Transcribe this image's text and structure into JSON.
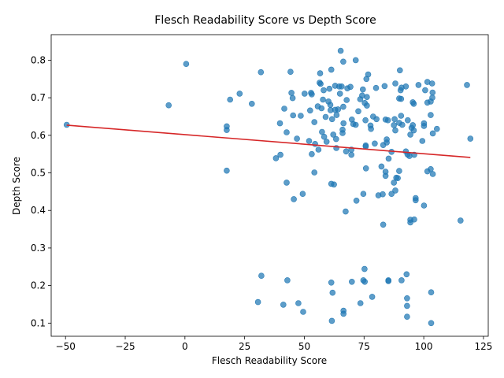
{
  "chart_data": {
    "type": "scatter",
    "title": "Flesch Readability Score vs Depth Score",
    "xlabel": "Flesch Readability Score",
    "ylabel": "Depth Score",
    "xlim": [
      -56,
      127
    ],
    "ylim": [
      0.065,
      0.868
    ],
    "xticks": [
      -50,
      -25,
      0,
      25,
      50,
      75,
      100,
      125
    ],
    "yticks": [
      0.1,
      0.2,
      0.3,
      0.4,
      0.5,
      0.6,
      0.7,
      0.8
    ],
    "grid": false,
    "point_color": "#1f77b4",
    "trend_color": "#d62728",
    "trendline": {
      "x": [
        -49.5,
        119.5
      ],
      "y": [
        0.627,
        0.541
      ]
    },
    "points": [
      [
        -49.5,
        0.628
      ],
      [
        -6.8,
        0.68
      ],
      [
        0.5,
        0.79
      ],
      [
        17.5,
        0.624
      ],
      [
        17.5,
        0.614
      ],
      [
        17.5,
        0.506
      ],
      [
        18.9,
        0.695
      ],
      [
        22.9,
        0.711
      ],
      [
        28.0,
        0.684
      ],
      [
        31.8,
        0.768
      ],
      [
        32.0,
        0.226
      ],
      [
        30.6,
        0.156
      ],
      [
        38.1,
        0.539
      ],
      [
        39.8,
        0.632
      ],
      [
        40.0,
        0.548
      ],
      [
        41.6,
        0.671
      ],
      [
        42.6,
        0.608
      ],
      [
        42.6,
        0.474
      ],
      [
        42.9,
        0.214
      ],
      [
        44.2,
        0.769
      ],
      [
        44.6,
        0.713
      ],
      [
        45.1,
        0.699
      ],
      [
        45.3,
        0.653
      ],
      [
        45.6,
        0.43
      ],
      [
        41.2,
        0.149
      ],
      [
        46.9,
        0.591
      ],
      [
        47.5,
        0.153
      ],
      [
        48.5,
        0.652
      ],
      [
        49.3,
        0.444
      ],
      [
        49.5,
        0.13
      ],
      [
        50.1,
        0.711
      ],
      [
        52.0,
        0.585
      ],
      [
        52.4,
        0.666
      ],
      [
        52.8,
        0.713
      ],
      [
        53.1,
        0.709
      ],
      [
        53.1,
        0.55
      ],
      [
        54.2,
        0.635
      ],
      [
        54.2,
        0.501
      ],
      [
        54.5,
        0.577
      ],
      [
        55.6,
        0.677
      ],
      [
        55.9,
        0.562
      ],
      [
        56.4,
        0.74
      ],
      [
        56.6,
        0.765
      ],
      [
        56.8,
        0.737
      ],
      [
        57.2,
        0.672
      ],
      [
        57.4,
        0.609
      ],
      [
        57.8,
        0.695
      ],
      [
        58.1,
        0.72
      ],
      [
        58.3,
        0.596
      ],
      [
        58.9,
        0.649
      ],
      [
        59.3,
        0.583
      ],
      [
        60.1,
        0.69
      ],
      [
        60.5,
        0.724
      ],
      [
        60.9,
        0.681
      ],
      [
        61.0,
        0.667
      ],
      [
        61.3,
        0.775
      ],
      [
        61.3,
        0.471
      ],
      [
        61.3,
        0.208
      ],
      [
        61.5,
        0.106
      ],
      [
        61.6,
        0.643
      ],
      [
        61.8,
        0.181
      ],
      [
        62.1,
        0.602
      ],
      [
        62.4,
        0.469
      ],
      [
        62.9,
        0.668
      ],
      [
        62.9,
        0.732
      ],
      [
        63.3,
        0.59
      ],
      [
        63.4,
        0.566
      ],
      [
        63.5,
        0.654
      ],
      [
        64.1,
        0.669
      ],
      [
        64.6,
        0.73
      ],
      [
        64.9,
        0.711
      ],
      [
        65.2,
        0.825
      ],
      [
        65.6,
        0.73
      ],
      [
        66.0,
        0.615
      ],
      [
        66.0,
        0.606
      ],
      [
        66.3,
        0.796
      ],
      [
        66.3,
        0.676
      ],
      [
        66.4,
        0.632
      ],
      [
        66.4,
        0.125
      ],
      [
        66.4,
        0.133
      ],
      [
        67.3,
        0.397
      ],
      [
        67.5,
        0.557
      ],
      [
        67.7,
        0.694
      ],
      [
        68.0,
        0.725
      ],
      [
        69.3,
        0.729
      ],
      [
        69.7,
        0.548
      ],
      [
        69.7,
        0.562
      ],
      [
        69.9,
        0.21
      ],
      [
        69.9,
        0.642
      ],
      [
        70.5,
        0.63
      ],
      [
        71.5,
        0.628
      ],
      [
        71.5,
        0.8
      ],
      [
        71.8,
        0.426
      ],
      [
        72.6,
        0.664
      ],
      [
        73.4,
        0.696
      ],
      [
        73.5,
        0.153
      ],
      [
        74.2,
        0.706
      ],
      [
        74.5,
        0.722
      ],
      [
        74.7,
        0.444
      ],
      [
        74.7,
        0.214
      ],
      [
        75.2,
        0.244
      ],
      [
        75.3,
        0.21
      ],
      [
        75.3,
        0.686
      ],
      [
        75.6,
        0.64
      ],
      [
        75.7,
        0.573
      ],
      [
        75.7,
        0.57
      ],
      [
        75.8,
        0.512
      ],
      [
        76.0,
        0.75
      ],
      [
        76.2,
        0.702
      ],
      [
        76.2,
        0.679
      ],
      [
        76.7,
        0.762
      ],
      [
        77.7,
        0.626
      ],
      [
        77.9,
        0.617
      ],
      [
        78.4,
        0.17
      ],
      [
        78.8,
        0.65
      ],
      [
        79.5,
        0.578
      ],
      [
        80.0,
        0.726
      ],
      [
        80.2,
        0.643
      ],
      [
        81.0,
        0.44
      ],
      [
        82.3,
        0.517
      ],
      [
        82.8,
        0.443
      ],
      [
        83.0,
        0.362
      ],
      [
        83.0,
        0.574
      ],
      [
        83.6,
        0.731
      ],
      [
        84.0,
        0.642
      ],
      [
        84.0,
        0.492
      ],
      [
        84.0,
        0.503
      ],
      [
        84.5,
        0.581
      ],
      [
        84.5,
        0.589
      ],
      [
        85.0,
        0.64
      ],
      [
        85.2,
        0.212
      ],
      [
        85.2,
        0.214
      ],
      [
        85.3,
        0.538
      ],
      [
        86.5,
        0.444
      ],
      [
        86.5,
        0.556
      ],
      [
        87.5,
        0.627
      ],
      [
        87.5,
        0.474
      ],
      [
        87.8,
        0.643
      ],
      [
        88.1,
        0.738
      ],
      [
        88.1,
        0.613
      ],
      [
        88.1,
        0.453
      ],
      [
        88.5,
        0.487
      ],
      [
        89.1,
        0.486
      ],
      [
        89.7,
        0.505
      ],
      [
        89.7,
        0.698
      ],
      [
        89.7,
        0.633
      ],
      [
        90.0,
        0.773
      ],
      [
        90.3,
        0.72
      ],
      [
        90.5,
        0.697
      ],
      [
        90.5,
        0.652
      ],
      [
        90.7,
        0.214
      ],
      [
        90.7,
        0.727
      ],
      [
        91.0,
        0.628
      ],
      [
        92.5,
        0.73
      ],
      [
        92.5,
        0.557
      ],
      [
        92.8,
        0.23
      ],
      [
        93.0,
        0.146
      ],
      [
        93.0,
        0.117
      ],
      [
        93.0,
        0.166
      ],
      [
        93.2,
        0.549
      ],
      [
        93.3,
        0.64
      ],
      [
        94.0,
        0.545
      ],
      [
        94.4,
        0.602
      ],
      [
        94.4,
        0.375
      ],
      [
        94.4,
        0.368
      ],
      [
        94.9,
        0.62
      ],
      [
        95.4,
        0.688
      ],
      [
        95.4,
        0.627
      ],
      [
        95.8,
        0.684
      ],
      [
        95.8,
        0.613
      ],
      [
        96.0,
        0.376
      ],
      [
        96.0,
        0.548
      ],
      [
        96.6,
        0.433
      ],
      [
        96.6,
        0.427
      ],
      [
        97.8,
        0.734
      ],
      [
        99.4,
        0.585
      ],
      [
        100.1,
        0.632
      ],
      [
        100.1,
        0.625
      ],
      [
        100.1,
        0.413
      ],
      [
        100.6,
        0.72
      ],
      [
        101.5,
        0.742
      ],
      [
        101.5,
        0.504
      ],
      [
        101.5,
        0.687
      ],
      [
        102.9,
        0.51
      ],
      [
        102.9,
        0.654
      ],
      [
        102.9,
        0.69
      ],
      [
        103.1,
        0.1
      ],
      [
        103.1,
        0.182
      ],
      [
        103.5,
        0.738
      ],
      [
        103.6,
        0.7
      ],
      [
        103.7,
        0.714
      ],
      [
        103.8,
        0.605
      ],
      [
        103.8,
        0.497
      ],
      [
        105.5,
        0.617
      ],
      [
        115.4,
        0.373
      ],
      [
        118.1,
        0.734
      ],
      [
        119.5,
        0.591
      ]
    ]
  }
}
